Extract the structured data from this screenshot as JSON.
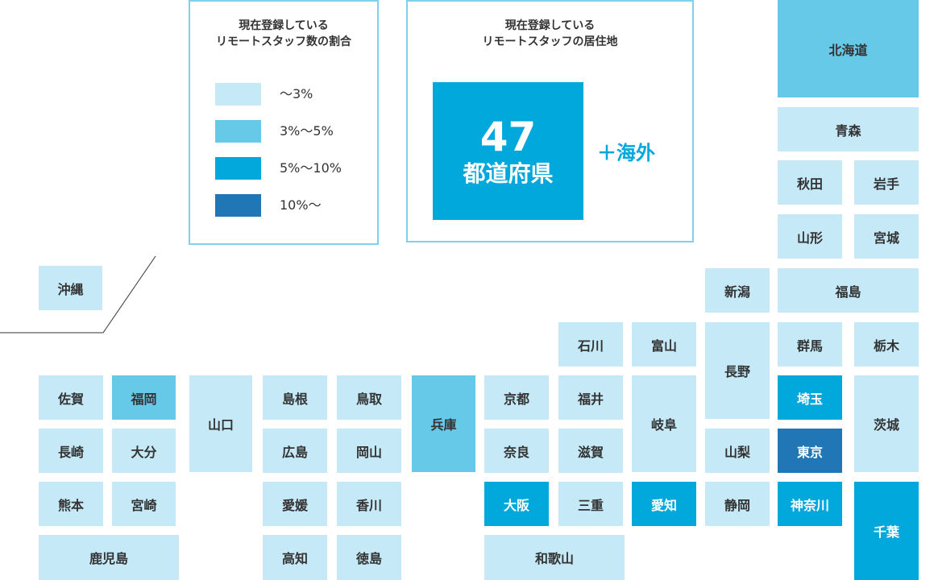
{
  "chart_data": {
    "type": "heatmap",
    "legend_title": [
      "現在登録している",
      "リモートスタッフ数の割合"
    ],
    "legend": [
      {
        "label": "〜3%",
        "color": "#c5e9f6"
      },
      {
        "label": "3%〜5%",
        "color": "#67c9e8"
      },
      {
        "label": "5%〜10%",
        "color": "#00a8dc"
      },
      {
        "label": "10%〜",
        "color": "#2177b5"
      }
    ],
    "info_title": [
      "現在登録している",
      "リモートスタッフの居住地"
    ],
    "info_number": "47",
    "info_unit": "都道府県",
    "info_extra": "＋海外",
    "prefectures": [
      {
        "name": "北海道",
        "level": 1
      },
      {
        "name": "青森",
        "level": 0
      },
      {
        "name": "秋田",
        "level": 0
      },
      {
        "name": "岩手",
        "level": 0
      },
      {
        "name": "山形",
        "level": 0
      },
      {
        "name": "宮城",
        "level": 0
      },
      {
        "name": "新潟",
        "level": 0
      },
      {
        "name": "福島",
        "level": 0
      },
      {
        "name": "沖縄",
        "level": 0
      },
      {
        "name": "石川",
        "level": 0
      },
      {
        "name": "富山",
        "level": 0
      },
      {
        "name": "長野",
        "level": 0
      },
      {
        "name": "群馬",
        "level": 0
      },
      {
        "name": "栃木",
        "level": 0
      },
      {
        "name": "佐賀",
        "level": 0
      },
      {
        "name": "福岡",
        "level": 1
      },
      {
        "name": "山口",
        "level": 0
      },
      {
        "name": "島根",
        "level": 0
      },
      {
        "name": "鳥取",
        "level": 0
      },
      {
        "name": "兵庫",
        "level": 1
      },
      {
        "name": "京都",
        "level": 0
      },
      {
        "name": "福井",
        "level": 0
      },
      {
        "name": "岐阜",
        "level": 0
      },
      {
        "name": "埼玉",
        "level": 2
      },
      {
        "name": "茨城",
        "level": 0
      },
      {
        "name": "長崎",
        "level": 0
      },
      {
        "name": "大分",
        "level": 0
      },
      {
        "name": "広島",
        "level": 0
      },
      {
        "name": "岡山",
        "level": 0
      },
      {
        "name": "奈良",
        "level": 0
      },
      {
        "name": "滋賀",
        "level": 0
      },
      {
        "name": "山梨",
        "level": 0
      },
      {
        "name": "東京",
        "level": 3
      },
      {
        "name": "熊本",
        "level": 0
      },
      {
        "name": "宮崎",
        "level": 0
      },
      {
        "name": "愛媛",
        "level": 0
      },
      {
        "name": "香川",
        "level": 0
      },
      {
        "name": "大阪",
        "level": 2
      },
      {
        "name": "三重",
        "level": 0
      },
      {
        "name": "愛知",
        "level": 2
      },
      {
        "name": "静岡",
        "level": 0
      },
      {
        "name": "神奈川",
        "level": 2
      },
      {
        "name": "千葉",
        "level": 2
      },
      {
        "name": "鹿児島",
        "level": 0
      },
      {
        "name": "高知",
        "level": 0
      },
      {
        "name": "徳島",
        "level": 0
      },
      {
        "name": "和歌山",
        "level": 0
      }
    ]
  }
}
